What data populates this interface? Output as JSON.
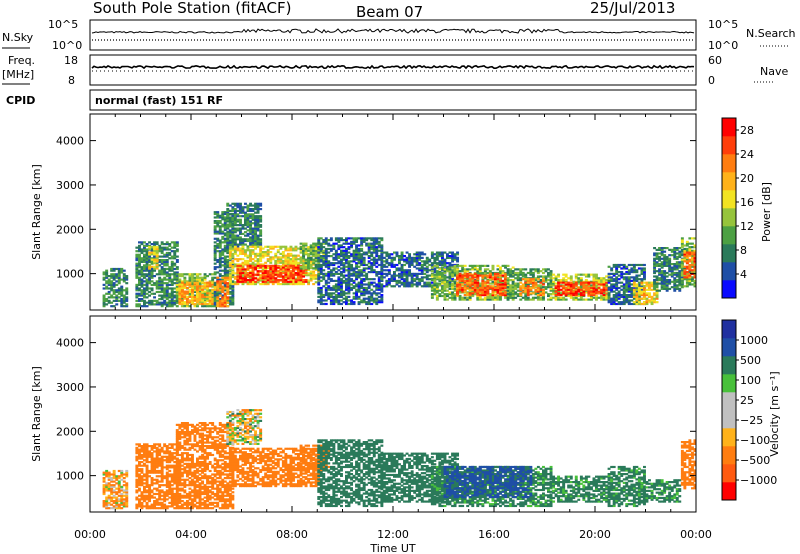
{
  "header": {
    "station": "South Pole Station (fitACF)",
    "beam": "Beam 07",
    "date": "25/Jul/2013"
  },
  "strips": {
    "nsky": {
      "label": "N.Sky",
      "left_ticks": [
        "10^5",
        "10^0"
      ],
      "right_label": "N.Search",
      "right_ticks": [
        "10^5",
        "10^0"
      ]
    },
    "freq": {
      "label_line1": "Freq.",
      "label_line2": "[MHz]",
      "left_ticks": [
        "18",
        "8"
      ],
      "right_label": "Nave",
      "right_ticks": [
        "60",
        "0"
      ]
    },
    "cpid": {
      "label": "CPID",
      "text": "normal (fast) 151 RF"
    }
  },
  "colors": {
    "power": [
      "#0a0aff",
      "#1f4fa6",
      "#2a7a5a",
      "#4ca043",
      "#96c43c",
      "#f2e322",
      "#ffb21a",
      "#ff7d10",
      "#ff3e0a",
      "#ff0000"
    ],
    "velocity": [
      "#ff0000",
      "#ff5a10",
      "#ff7d10",
      "#ffb21a",
      "#c0c0c0",
      "#c0c0c0",
      "#48c03a",
      "#2a7a5a",
      "#1f4fa6",
      "#2030a0"
    ]
  },
  "chart_data": [
    {
      "type": "heatmap",
      "title": "",
      "quantity": "power",
      "xlabel": "Time UT",
      "ylabel": "Slant Range [km]",
      "xlim": [
        "00:00",
        "24:00"
      ],
      "ylim": [
        180,
        4600
      ],
      "x_tick_labels": [
        "00:00",
        "04:00",
        "08:00",
        "12:00",
        "16:00",
        "20:00",
        "00:00"
      ],
      "y_tick_labels": [
        "1000",
        "2000",
        "3000",
        "4000"
      ],
      "colorbar": {
        "label": "Power [dB]",
        "range": [
          0,
          30
        ],
        "tick_labels": [
          "4",
          "8",
          "12",
          "16",
          "20",
          "24",
          "28"
        ]
      },
      "regions": [
        {
          "t": [
            0.5,
            1.5
          ],
          "r": [
            250,
            1100
          ],
          "value": 8
        },
        {
          "t": [
            1.8,
            3.5
          ],
          "r": [
            250,
            1700
          ],
          "value": 8
        },
        {
          "t": [
            2.3,
            2.7
          ],
          "r": [
            1100,
            1600
          ],
          "value": 16
        },
        {
          "t": [
            3.4,
            4.8
          ],
          "r": [
            250,
            1000
          ],
          "value": 12
        },
        {
          "t": [
            3.5,
            5.0
          ],
          "r": [
            300,
            800
          ],
          "value": 20
        },
        {
          "t": [
            4.9,
            5.6
          ],
          "r": [
            250,
            2400
          ],
          "value": 8
        },
        {
          "t": [
            5.0,
            5.4
          ],
          "r": [
            250,
            900
          ],
          "value": 22
        },
        {
          "t": [
            5.4,
            6.7
          ],
          "r": [
            1600,
            2600
          ],
          "value": 8
        },
        {
          "t": [
            5.5,
            9.0
          ],
          "r": [
            750,
            1600
          ],
          "value": 16
        },
        {
          "t": [
            5.8,
            8.5
          ],
          "r": [
            800,
            1200
          ],
          "value": 26
        },
        {
          "t": [
            8.3,
            9.2
          ],
          "r": [
            1100,
            1700
          ],
          "value": 12
        },
        {
          "t": [
            9.0,
            11.5
          ],
          "r": [
            300,
            1800
          ],
          "value": 6
        },
        {
          "t": [
            11.5,
            14.5
          ],
          "r": [
            700,
            1500
          ],
          "value": 6
        },
        {
          "t": [
            13.5,
            16.8
          ],
          "r": [
            400,
            1200
          ],
          "value": 12
        },
        {
          "t": [
            14.5,
            16.5
          ],
          "r": [
            500,
            1000
          ],
          "value": 24
        },
        {
          "t": [
            16.5,
            18.3
          ],
          "r": [
            400,
            1100
          ],
          "value": 10
        },
        {
          "t": [
            17.0,
            18.0
          ],
          "r": [
            500,
            900
          ],
          "value": 22
        },
        {
          "t": [
            18.2,
            20.6
          ],
          "r": [
            400,
            1000
          ],
          "value": 14
        },
        {
          "t": [
            18.4,
            20.5
          ],
          "r": [
            500,
            800
          ],
          "value": 26
        },
        {
          "t": [
            20.5,
            22.0
          ],
          "r": [
            300,
            1200
          ],
          "value": 6
        },
        {
          "t": [
            21.5,
            22.5
          ],
          "r": [
            300,
            800
          ],
          "value": 18
        },
        {
          "t": [
            22.3,
            23.5
          ],
          "r": [
            600,
            1600
          ],
          "value": 8
        },
        {
          "t": [
            23.4,
            24.0
          ],
          "r": [
            700,
            1800
          ],
          "value": 12
        },
        {
          "t": [
            23.5,
            24.0
          ],
          "r": [
            900,
            1500
          ],
          "value": 24
        }
      ]
    },
    {
      "type": "heatmap",
      "title": "",
      "quantity": "velocity",
      "xlabel": "Time UT",
      "ylabel": "Slant Range [km]",
      "xlim": [
        "00:00",
        "24:00"
      ],
      "ylim": [
        180,
        4600
      ],
      "x_tick_labels": [
        "00:00",
        "04:00",
        "08:00",
        "12:00",
        "16:00",
        "20:00",
        "00:00"
      ],
      "y_tick_labels": [
        "1000",
        "2000",
        "3000",
        "4000"
      ],
      "colorbar": {
        "label": "Velocity [m s⁻¹]",
        "tick_labels": [
          "1000",
          "500",
          "100",
          "25",
          "−25",
          "−100",
          "−500",
          "−1000"
        ]
      },
      "regions": [
        {
          "t": [
            0.5,
            1.5
          ],
          "r": [
            250,
            1100
          ],
          "value": -100
        },
        {
          "t": [
            1.8,
            3.5
          ],
          "r": [
            250,
            1700
          ],
          "value": -300
        },
        {
          "t": [
            3.4,
            5.6
          ],
          "r": [
            250,
            2200
          ],
          "value": -300
        },
        {
          "t": [
            5.4,
            6.7
          ],
          "r": [
            1700,
            2500
          ],
          "value": 0
        },
        {
          "t": [
            5.5,
            9.0
          ],
          "r": [
            750,
            1600
          ],
          "value": -300
        },
        {
          "t": [
            8.3,
            9.4
          ],
          "r": [
            1100,
            1700
          ],
          "value": -300
        },
        {
          "t": [
            9.0,
            11.5
          ],
          "r": [
            300,
            1800
          ],
          "value": 300
        },
        {
          "t": [
            11.5,
            14.5
          ],
          "r": [
            400,
            1500
          ],
          "value": 300
        },
        {
          "t": [
            13.5,
            18.3
          ],
          "r": [
            300,
            1200
          ],
          "value": 200
        },
        {
          "t": [
            14.0,
            17.5
          ],
          "r": [
            500,
            1200
          ],
          "value": 600
        },
        {
          "t": [
            18.2,
            20.6
          ],
          "r": [
            400,
            1000
          ],
          "value": 200
        },
        {
          "t": [
            20.5,
            22.0
          ],
          "r": [
            300,
            1200
          ],
          "value": 200
        },
        {
          "t": [
            21.8,
            23.4
          ],
          "r": [
            400,
            900
          ],
          "value": 200
        },
        {
          "t": [
            23.4,
            24.0
          ],
          "r": [
            700,
            1800
          ],
          "value": -300
        }
      ]
    }
  ]
}
